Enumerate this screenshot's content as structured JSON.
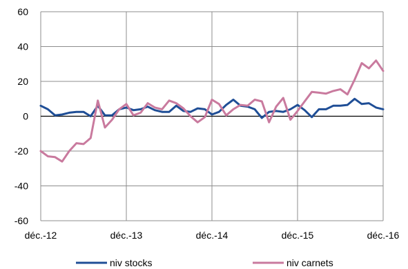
{
  "chart_data": {
    "type": "line",
    "title": "",
    "xlabel": "",
    "ylabel": "",
    "ylim": [
      -60,
      60
    ],
    "y_ticks": [
      -60,
      -40,
      -20,
      0,
      20,
      40,
      60
    ],
    "y_tick_labels": [
      "-60",
      "-40",
      "-20",
      "0",
      "20",
      "40",
      "60"
    ],
    "x_ticks": [
      {
        "index": 0,
        "label": "déc.-12"
      },
      {
        "index": 12,
        "label": "déc.-13"
      },
      {
        "index": 24,
        "label": "déc.-14"
      },
      {
        "index": 36,
        "label": "déc.-15"
      },
      {
        "index": 48,
        "label": "déc.-16"
      }
    ],
    "grid": true,
    "legend_position": "bottom",
    "series": [
      {
        "name": "niv stocks",
        "color": "#1f4e96",
        "values": [
          6,
          4,
          0.5,
          1,
          2,
          2.5,
          2.5,
          0,
          6,
          0.5,
          0.5,
          4,
          5,
          3.5,
          4,
          5.5,
          3.5,
          2.5,
          2.5,
          6,
          3,
          2.5,
          4.5,
          4,
          1,
          2.5,
          6.5,
          9.5,
          6,
          5.5,
          4,
          -1,
          2.5,
          3,
          2.5,
          4,
          6.5,
          3.5,
          -0.5,
          4,
          4,
          6,
          6,
          6.5,
          10,
          7,
          7.5,
          5,
          4
        ]
      },
      {
        "name": "niv carnets",
        "color": "#c97a9e",
        "values": [
          -20,
          -23,
          -23.5,
          -26,
          -20,
          -15.5,
          -16,
          -12.5,
          9,
          -6.5,
          -2,
          4,
          7,
          0.5,
          2,
          7.5,
          5,
          4,
          9,
          7.5,
          4.5,
          0,
          -3.5,
          -0.5,
          9.5,
          7,
          0.5,
          4,
          6.5,
          6,
          9.5,
          8.5,
          -3.5,
          5.5,
          10.5,
          -2,
          3,
          8.5,
          14,
          13.5,
          13,
          14.5,
          15.5,
          12.5,
          21,
          30.5,
          27.5,
          32,
          26
        ]
      }
    ]
  }
}
